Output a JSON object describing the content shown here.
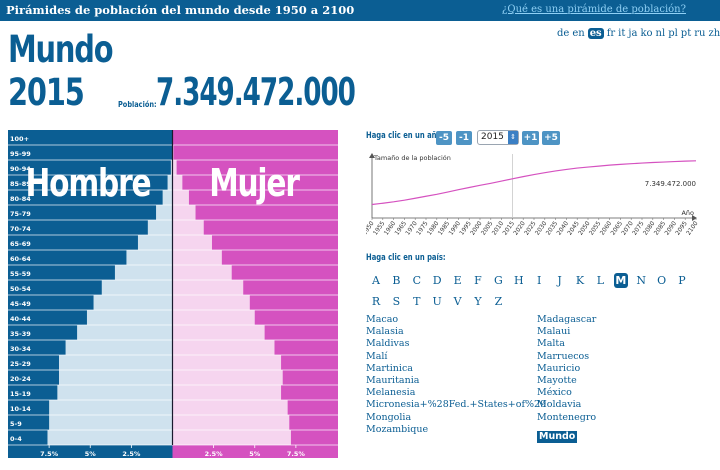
{
  "header": {
    "title": "Pirámides de población del mundo desde 1950 a 2100",
    "link": "¿Qué es una pirámide de población?"
  },
  "summary": {
    "region": "Mundo",
    "year": "2015",
    "population_label": "Población:",
    "population_value": "7.349.472.000"
  },
  "languages": [
    {
      "code": "de"
    },
    {
      "code": "en"
    },
    {
      "code": "es",
      "selected": true
    },
    {
      "code": "fr"
    },
    {
      "code": "it"
    },
    {
      "code": "ja"
    },
    {
      "code": "ko"
    },
    {
      "code": "nl"
    },
    {
      "code": "pl"
    },
    {
      "code": "pt"
    },
    {
      "code": "ru"
    },
    {
      "code": "zh"
    }
  ],
  "controls": {
    "year_label": "Haga clic en un año:",
    "buttons": [
      "-5",
      "-1",
      "+1",
      "+5"
    ],
    "year_value": "2015",
    "country_label": "Haga clic en un país:"
  },
  "letters": [
    "A",
    "B",
    "C",
    "D",
    "E",
    "F",
    "G",
    "H",
    "I",
    "J",
    "K",
    "L",
    "M",
    "N",
    "O",
    "P",
    "R",
    "S",
    "T",
    "U",
    "V",
    "Y",
    "Z"
  ],
  "selected_letter": "M",
  "countries_left": [
    "Macao",
    "Malasia",
    "Maldivas",
    "Malí",
    "Martinica",
    "Mauritania",
    "Melanesia",
    "Micronesia+%28Fed.+States+of%29",
    "Mongolia",
    "Mozambique"
  ],
  "countries_right": [
    "Madagascar",
    "Malaui",
    "Malta",
    "Marruecos",
    "Mauricio",
    "Mayotte",
    "México",
    "Moldavia",
    "Montenegro",
    "Mundo"
  ],
  "selected_country": "Mundo",
  "colors": {
    "brand": "#0b5e93",
    "male_bg": "#0b5e93",
    "female_bg": "#d552c0",
    "male_fill": "#cfe2ee",
    "female_fill": "#f6d5ef",
    "trend_line": "#d552c0"
  },
  "chart_data": [
    {
      "type": "bar",
      "orientation": "horizontal-population-pyramid",
      "categories": [
        "100+",
        "95-99",
        "90-94",
        "85-89",
        "80-84",
        "75-79",
        "70-74",
        "65-69",
        "60-64",
        "55-59",
        "50-54",
        "45-49",
        "40-44",
        "35-39",
        "30-34",
        "25-29",
        "20-24",
        "15-19",
        "10-14",
        "5-9",
        "0-4"
      ],
      "series": [
        {
          "name": "Hombre",
          "values": [
            0.0,
            0.02,
            0.1,
            0.3,
            0.6,
            1.0,
            1.5,
            2.1,
            2.8,
            3.5,
            4.3,
            4.8,
            5.2,
            5.8,
            6.5,
            6.9,
            6.9,
            7.0,
            7.5,
            7.5,
            7.6
          ]
        },
        {
          "name": "Mujer",
          "values": [
            0.0,
            0.06,
            0.25,
            0.6,
            1.0,
            1.4,
            1.9,
            2.4,
            3.0,
            3.6,
            4.3,
            4.7,
            5.0,
            5.6,
            6.2,
            6.6,
            6.7,
            6.6,
            7.0,
            7.1,
            7.2
          ]
        }
      ],
      "xtick_labels": [
        "7.5%",
        "5%",
        "2.5%",
        "2.5%",
        "5%",
        "7.5%"
      ],
      "xlim": [
        -10,
        10
      ]
    },
    {
      "type": "line",
      "ylabel": "Tamaño de la población",
      "xlabel": "Año",
      "x": [
        1950,
        1955,
        1960,
        1965,
        1970,
        1975,
        1980,
        1985,
        1990,
        1995,
        2000,
        2005,
        2010,
        2015,
        2020,
        2025,
        2030,
        2035,
        2040,
        2045,
        2050,
        2055,
        2060,
        2065,
        2070,
        2075,
        2080,
        2085,
        2090,
        2095,
        2100
      ],
      "values": [
        2.53,
        2.77,
        3.03,
        3.34,
        3.7,
        4.08,
        4.44,
        4.86,
        5.31,
        5.72,
        6.13,
        6.51,
        6.92,
        7.35,
        7.76,
        8.14,
        8.5,
        8.82,
        9.11,
        9.36,
        9.55,
        9.73,
        9.91,
        10.06,
        10.18,
        10.3,
        10.4,
        10.49,
        10.58,
        10.66,
        10.72
      ],
      "highlight_year": 2015,
      "highlight_label": "7.349.472.000",
      "ylim": [
        0,
        12
      ]
    }
  ]
}
